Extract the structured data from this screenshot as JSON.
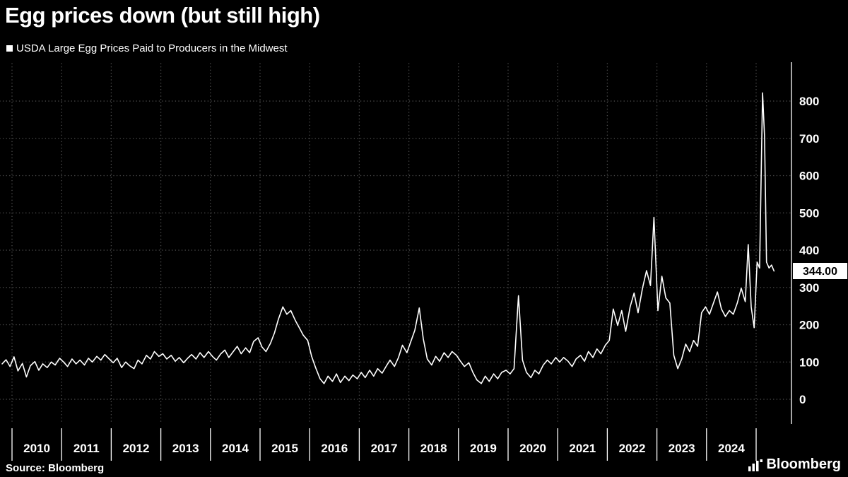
{
  "header": {
    "title": "Egg prices down (but still high)",
    "legend": "USDA Large Egg Prices Paid to Producers in the Midwest"
  },
  "footer": {
    "source": "Source: Bloomberg",
    "brand": "Bloomberg"
  },
  "chart_data": {
    "type": "line",
    "title": "Egg prices down (but still high)",
    "series_name": "USDA Large Egg Prices Paid to Producers in the Midwest",
    "xlabel": "",
    "ylabel": "",
    "ylim": [
      0,
      900
    ],
    "y_ticks": [
      800,
      700,
      600,
      500,
      400,
      300,
      200,
      100,
      0
    ],
    "x_ticks": [
      2010,
      2011,
      2012,
      2013,
      2014,
      2015,
      2016,
      2017,
      2018,
      2019,
      2020,
      2021,
      2022,
      2023,
      2024
    ],
    "grid_years": [
      2010,
      2011,
      2012,
      2013,
      2014,
      2015,
      2016,
      2017,
      2018,
      2019,
      2020,
      2021,
      2022,
      2023,
      2024,
      2025
    ],
    "legend_position": "top-left",
    "grid": true,
    "background": "#000000",
    "line_color": "#ffffff",
    "grid_color": "#4d4d4d",
    "last_value_label": "344.00",
    "last_value": 344.0,
    "points": [
      [
        2009.8,
        95
      ],
      [
        2009.88,
        106
      ],
      [
        2009.96,
        88
      ],
      [
        2010.04,
        114
      ],
      [
        2010.12,
        76
      ],
      [
        2010.21,
        96
      ],
      [
        2010.29,
        60
      ],
      [
        2010.37,
        90
      ],
      [
        2010.46,
        101
      ],
      [
        2010.54,
        78
      ],
      [
        2010.62,
        95
      ],
      [
        2010.71,
        85
      ],
      [
        2010.79,
        100
      ],
      [
        2010.87,
        92
      ],
      [
        2010.96,
        110
      ],
      [
        2011.04,
        100
      ],
      [
        2011.12,
        88
      ],
      [
        2011.21,
        108
      ],
      [
        2011.29,
        95
      ],
      [
        2011.37,
        105
      ],
      [
        2011.46,
        92
      ],
      [
        2011.54,
        110
      ],
      [
        2011.62,
        100
      ],
      [
        2011.71,
        115
      ],
      [
        2011.79,
        105
      ],
      [
        2011.87,
        120
      ],
      [
        2011.96,
        108
      ],
      [
        2012.04,
        98
      ],
      [
        2012.12,
        110
      ],
      [
        2012.21,
        85
      ],
      [
        2012.29,
        100
      ],
      [
        2012.37,
        90
      ],
      [
        2012.46,
        82
      ],
      [
        2012.54,
        105
      ],
      [
        2012.62,
        95
      ],
      [
        2012.71,
        118
      ],
      [
        2012.79,
        108
      ],
      [
        2012.87,
        128
      ],
      [
        2012.96,
        115
      ],
      [
        2013.04,
        122
      ],
      [
        2013.12,
        108
      ],
      [
        2013.21,
        118
      ],
      [
        2013.29,
        102
      ],
      [
        2013.37,
        112
      ],
      [
        2013.46,
        98
      ],
      [
        2013.54,
        110
      ],
      [
        2013.62,
        120
      ],
      [
        2013.71,
        108
      ],
      [
        2013.79,
        125
      ],
      [
        2013.87,
        112
      ],
      [
        2013.96,
        128
      ],
      [
        2014.04,
        115
      ],
      [
        2014.12,
        105
      ],
      [
        2014.21,
        122
      ],
      [
        2014.29,
        132
      ],
      [
        2014.37,
        112
      ],
      [
        2014.46,
        128
      ],
      [
        2014.54,
        142
      ],
      [
        2014.62,
        122
      ],
      [
        2014.71,
        138
      ],
      [
        2014.79,
        125
      ],
      [
        2014.87,
        155
      ],
      [
        2014.96,
        165
      ],
      [
        2015.04,
        140
      ],
      [
        2015.12,
        128
      ],
      [
        2015.21,
        150
      ],
      [
        2015.29,
        178
      ],
      [
        2015.37,
        215
      ],
      [
        2015.46,
        248
      ],
      [
        2015.54,
        228
      ],
      [
        2015.62,
        238
      ],
      [
        2015.71,
        212
      ],
      [
        2015.79,
        192
      ],
      [
        2015.87,
        172
      ],
      [
        2015.96,
        158
      ],
      [
        2016.04,
        115
      ],
      [
        2016.12,
        85
      ],
      [
        2016.21,
        55
      ],
      [
        2016.29,
        42
      ],
      [
        2016.37,
        62
      ],
      [
        2016.46,
        48
      ],
      [
        2016.54,
        68
      ],
      [
        2016.62,
        45
      ],
      [
        2016.71,
        62
      ],
      [
        2016.79,
        50
      ],
      [
        2016.87,
        65
      ],
      [
        2016.96,
        55
      ],
      [
        2017.04,
        72
      ],
      [
        2017.12,
        58
      ],
      [
        2017.21,
        78
      ],
      [
        2017.29,
        62
      ],
      [
        2017.37,
        82
      ],
      [
        2017.46,
        70
      ],
      [
        2017.54,
        88
      ],
      [
        2017.62,
        105
      ],
      [
        2017.71,
        88
      ],
      [
        2017.79,
        112
      ],
      [
        2017.87,
        145
      ],
      [
        2017.96,
        125
      ],
      [
        2018.04,
        155
      ],
      [
        2018.12,
        185
      ],
      [
        2018.21,
        245
      ],
      [
        2018.29,
        162
      ],
      [
        2018.37,
        108
      ],
      [
        2018.46,
        92
      ],
      [
        2018.54,
        115
      ],
      [
        2018.62,
        102
      ],
      [
        2018.71,
        125
      ],
      [
        2018.79,
        112
      ],
      [
        2018.87,
        128
      ],
      [
        2018.96,
        118
      ],
      [
        2019.04,
        102
      ],
      [
        2019.12,
        88
      ],
      [
        2019.21,
        98
      ],
      [
        2019.29,
        72
      ],
      [
        2019.37,
        52
      ],
      [
        2019.46,
        42
      ],
      [
        2019.54,
        62
      ],
      [
        2019.62,
        48
      ],
      [
        2019.71,
        68
      ],
      [
        2019.79,
        55
      ],
      [
        2019.87,
        72
      ],
      [
        2019.96,
        78
      ],
      [
        2020.04,
        68
      ],
      [
        2020.12,
        82
      ],
      [
        2020.21,
        278
      ],
      [
        2020.29,
        105
      ],
      [
        2020.37,
        72
      ],
      [
        2020.46,
        58
      ],
      [
        2020.54,
        78
      ],
      [
        2020.62,
        68
      ],
      [
        2020.71,
        92
      ],
      [
        2020.79,
        105
      ],
      [
        2020.87,
        95
      ],
      [
        2020.96,
        112
      ],
      [
        2021.04,
        100
      ],
      [
        2021.12,
        112
      ],
      [
        2021.21,
        102
      ],
      [
        2021.29,
        88
      ],
      [
        2021.37,
        108
      ],
      [
        2021.46,
        118
      ],
      [
        2021.54,
        102
      ],
      [
        2021.62,
        128
      ],
      [
        2021.71,
        112
      ],
      [
        2021.79,
        135
      ],
      [
        2021.87,
        122
      ],
      [
        2021.96,
        145
      ],
      [
        2022.04,
        158
      ],
      [
        2022.12,
        242
      ],
      [
        2022.21,
        198
      ],
      [
        2022.29,
        238
      ],
      [
        2022.37,
        182
      ],
      [
        2022.46,
        248
      ],
      [
        2022.54,
        285
      ],
      [
        2022.62,
        232
      ],
      [
        2022.71,
        298
      ],
      [
        2022.79,
        345
      ],
      [
        2022.87,
        305
      ],
      [
        2022.94,
        488
      ],
      [
        2023.02,
        238
      ],
      [
        2023.1,
        330
      ],
      [
        2023.18,
        272
      ],
      [
        2023.26,
        258
      ],
      [
        2023.34,
        118
      ],
      [
        2023.42,
        82
      ],
      [
        2023.5,
        108
      ],
      [
        2023.58,
        148
      ],
      [
        2023.66,
        128
      ],
      [
        2023.74,
        158
      ],
      [
        2023.82,
        142
      ],
      [
        2023.9,
        232
      ],
      [
        2023.98,
        248
      ],
      [
        2024.06,
        228
      ],
      [
        2024.14,
        258
      ],
      [
        2024.22,
        288
      ],
      [
        2024.3,
        242
      ],
      [
        2024.38,
        222
      ],
      [
        2024.46,
        238
      ],
      [
        2024.54,
        228
      ],
      [
        2024.62,
        258
      ],
      [
        2024.7,
        298
      ],
      [
        2024.78,
        262
      ],
      [
        2024.84,
        415
      ],
      [
        2024.9,
        248
      ],
      [
        2024.96,
        192
      ],
      [
        2025.02,
        368
      ],
      [
        2025.07,
        352
      ],
      [
        2025.13,
        822
      ],
      [
        2025.17,
        705
      ],
      [
        2025.21,
        368
      ],
      [
        2025.26,
        352
      ],
      [
        2025.31,
        360
      ],
      [
        2025.36,
        344
      ]
    ]
  }
}
